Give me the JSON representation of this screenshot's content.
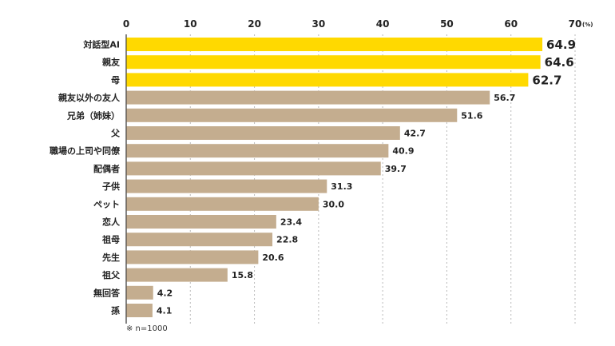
{
  "chart_data": {
    "type": "bar",
    "orientation": "horizontal",
    "categories": [
      "対話型AI",
      "親友",
      "母",
      "親友以外の友人",
      "兄弟（姉妹）",
      "父",
      "職場の上司や同僚",
      "配偶者",
      "子供",
      "ペット",
      "恋人",
      "祖母",
      "先生",
      "祖父",
      "無回答",
      "孫"
    ],
    "values": [
      64.9,
      64.6,
      62.7,
      56.7,
      51.6,
      42.7,
      40.9,
      39.7,
      31.3,
      30.0,
      23.4,
      22.8,
      20.6,
      15.8,
      4.2,
      4.1
    ],
    "value_labels": [
      "64.9",
      "64.6",
      "62.7",
      "56.7",
      "51.6",
      "42.7",
      "40.9",
      "39.7",
      "31.3",
      "30.0",
      "23.4",
      "22.8",
      "20.6",
      "15.8",
      "4.2",
      "4.1"
    ],
    "highlight_count": 3,
    "xlim": [
      0,
      70
    ],
    "xticks": [
      "0",
      "10",
      "20",
      "30",
      "40",
      "50",
      "60",
      "70"
    ],
    "x_unit": "(%)",
    "grid": "vertical dotted",
    "note": "※ n=1000",
    "colors": {
      "highlight_bar": "#FFD900",
      "normal_bar": "#C4AD8F",
      "highlight_value": "#1FAF7B",
      "normal_value": "#222222",
      "grid": "#BBBBBB",
      "axis": "#333333"
    }
  }
}
